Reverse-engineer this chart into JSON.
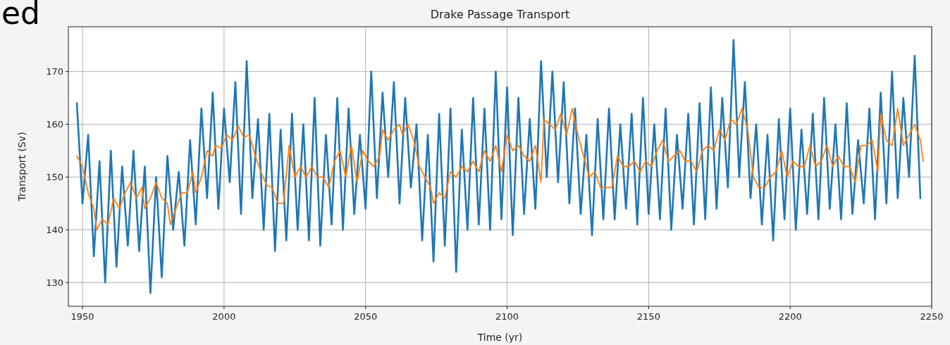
{
  "chart_data": {
    "type": "line",
    "title": "Drake Passage Transport",
    "xlabel": "Time (yr)",
    "ylabel": "Transport (Sv)",
    "annotations": [
      "ed"
    ],
    "xlim": [
      1945,
      2250
    ],
    "xticks": [
      1950,
      2000,
      2050,
      2100,
      2150,
      2200,
      2250
    ],
    "ylim": [
      125.5,
      178.5
    ],
    "yticks": [
      130,
      140,
      150,
      160,
      170
    ],
    "grid": true,
    "marker": "none",
    "line_style": "solid",
    "series": [
      {
        "color": "#1f77b4",
        "x": [
          1948,
          1950,
          1952,
          1954,
          1956,
          1958,
          1960,
          1962,
          1964,
          1966,
          1968,
          1970,
          1972,
          1974,
          1976,
          1978,
          1980,
          1982,
          1984,
          1986,
          1988,
          1990,
          1992,
          1994,
          1996,
          1998,
          2000,
          2002,
          2004,
          2006,
          2008,
          2010,
          2012,
          2014,
          2016,
          2018,
          2020,
          2022,
          2024,
          2026,
          2028,
          2030,
          2032,
          2034,
          2036,
          2038,
          2040,
          2042,
          2044,
          2046,
          2048,
          2050,
          2052,
          2054,
          2056,
          2058,
          2060,
          2062,
          2064,
          2066,
          2068,
          2070,
          2072,
          2074,
          2076,
          2078,
          2080,
          2082,
          2084,
          2086,
          2088,
          2090,
          2092,
          2094,
          2096,
          2098,
          2100,
          2102,
          2104,
          2106,
          2108,
          2110,
          2112,
          2114,
          2116,
          2118,
          2120,
          2122,
          2124,
          2126,
          2128,
          2130,
          2132,
          2134,
          2136,
          2138,
          2140,
          2142,
          2144,
          2146,
          2148,
          2150,
          2152,
          2154,
          2156,
          2158,
          2160,
          2162,
          2164,
          2166,
          2168,
          2170,
          2172,
          2174,
          2176,
          2178,
          2180,
          2182,
          2184,
          2186,
          2188,
          2190,
          2192,
          2194,
          2196,
          2198,
          2200,
          2202,
          2204,
          2206,
          2208,
          2210,
          2212,
          2214,
          2216,
          2218,
          2220,
          2222,
          2224,
          2226,
          2228,
          2230,
          2232,
          2234,
          2236,
          2238,
          2240,
          2242,
          2244,
          2246
        ],
        "values": [
          164,
          145,
          158,
          135,
          153,
          130,
          155,
          133,
          152,
          137,
          155,
          136,
          152,
          128,
          150,
          131,
          154,
          140,
          151,
          137,
          157,
          141,
          163,
          146,
          166,
          144,
          163,
          149,
          168,
          143,
          172,
          146,
          161,
          140,
          162,
          136,
          159,
          138,
          162,
          140,
          160,
          138,
          165,
          137,
          158,
          141,
          165,
          140,
          163,
          143,
          158,
          144,
          170,
          146,
          166,
          150,
          168,
          145,
          165,
          148,
          160,
          138,
          158,
          134,
          162,
          137,
          163,
          132,
          159,
          140,
          165,
          141,
          163,
          140,
          170,
          142,
          167,
          139,
          165,
          143,
          161,
          144,
          172,
          150,
          170,
          149,
          168,
          145,
          163,
          143,
          158,
          139,
          161,
          142,
          163,
          142,
          160,
          144,
          162,
          141,
          165,
          143,
          160,
          142,
          163,
          140,
          158,
          144,
          162,
          141,
          164,
          142,
          167,
          144,
          165,
          148,
          176,
          150,
          168,
          146,
          160,
          141,
          158,
          138,
          161,
          142,
          163,
          140,
          159,
          143,
          162,
          142,
          165,
          144,
          160,
          142,
          164,
          143,
          157,
          145,
          163,
          142,
          166,
          145,
          170,
          146,
          165,
          150,
          173,
          146
        ]
      },
      {
        "color": "#ff7f0e",
        "x": [
          1948,
          1950,
          1952,
          1954,
          1955,
          1957,
          1959,
          1961,
          1963,
          1965,
          1967,
          1969,
          1971,
          1972,
          1974,
          1976,
          1978,
          1980,
          1981,
          1983,
          1985,
          1987,
          1989,
          1990,
          1992,
          1994,
          1996,
          1997,
          1999,
          2001,
          2003,
          2005,
          2007,
          2009,
          2011,
          2013,
          2015,
          2017,
          2019,
          2021,
          2023,
          2025,
          2027,
          2029,
          2031,
          2033,
          2035,
          2037,
          2039,
          2041,
          2043,
          2045,
          2047,
          2049,
          2051,
          2053,
          2055,
          2056,
          2058,
          2060,
          2062,
          2063,
          2065,
          2067,
          2069,
          2071,
          2073,
          2074,
          2076,
          2078,
          2080,
          2082,
          2084,
          2086,
          2088,
          2090,
          2092,
          2094,
          2096,
          2098,
          2100,
          2102,
          2104,
          2106,
          2108,
          2110,
          2112,
          2113,
          2115,
          2117,
          2119,
          2121,
          2123,
          2125,
          2127,
          2129,
          2131,
          2133,
          2135,
          2137,
          2139,
          2141,
          2143,
          2145,
          2147,
          2149,
          2151,
          2153,
          2155,
          2157,
          2159,
          2161,
          2163,
          2165,
          2167,
          2169,
          2171,
          2173,
          2175,
          2177,
          2179,
          2181,
          2183,
          2185,
          2187,
          2189,
          2191,
          2193,
          2195,
          2197,
          2199,
          2201,
          2203,
          2205,
          2207,
          2209,
          2211,
          2213,
          2215,
          2217,
          2219,
          2221,
          2223,
          2225,
          2227,
          2229,
          2231,
          2232,
          2234,
          2236,
          2238,
          2240,
          2242,
          2244,
          2246,
          2247
        ],
        "values": [
          154,
          152,
          147,
          144,
          140,
          142,
          141,
          146,
          144,
          147,
          149,
          146,
          148,
          144,
          146,
          149,
          146,
          145,
          141,
          144,
          147,
          147,
          151,
          147,
          150,
          155,
          154,
          156,
          155.5,
          158,
          157,
          159.7,
          157.5,
          158,
          154,
          151,
          148.5,
          148,
          145,
          145,
          156,
          150,
          152,
          150,
          152,
          150,
          150,
          148,
          153,
          155,
          150,
          156,
          149,
          155,
          153,
          152,
          154,
          159,
          157,
          159,
          160,
          158,
          160,
          157,
          152,
          150,
          148,
          145,
          147,
          146,
          151,
          150,
          152,
          151,
          153,
          151,
          155,
          153,
          156,
          151,
          158,
          155,
          156,
          154,
          153,
          156,
          149,
          161,
          160,
          159,
          162,
          158,
          163,
          158,
          154,
          150,
          151,
          148,
          148,
          148,
          154,
          152,
          152,
          153,
          151,
          153,
          152,
          155,
          157,
          153,
          154,
          155,
          153,
          153,
          151,
          155,
          156,
          155,
          159,
          157,
          161,
          160,
          163,
          159,
          150,
          148,
          148,
          150,
          151,
          155,
          150,
          153,
          152,
          152,
          156,
          152,
          153,
          156,
          152,
          154,
          152,
          152,
          149,
          156,
          156,
          157,
          151,
          162,
          157,
          156,
          163,
          156,
          158,
          160,
          157,
          153
        ]
      }
    ]
  }
}
